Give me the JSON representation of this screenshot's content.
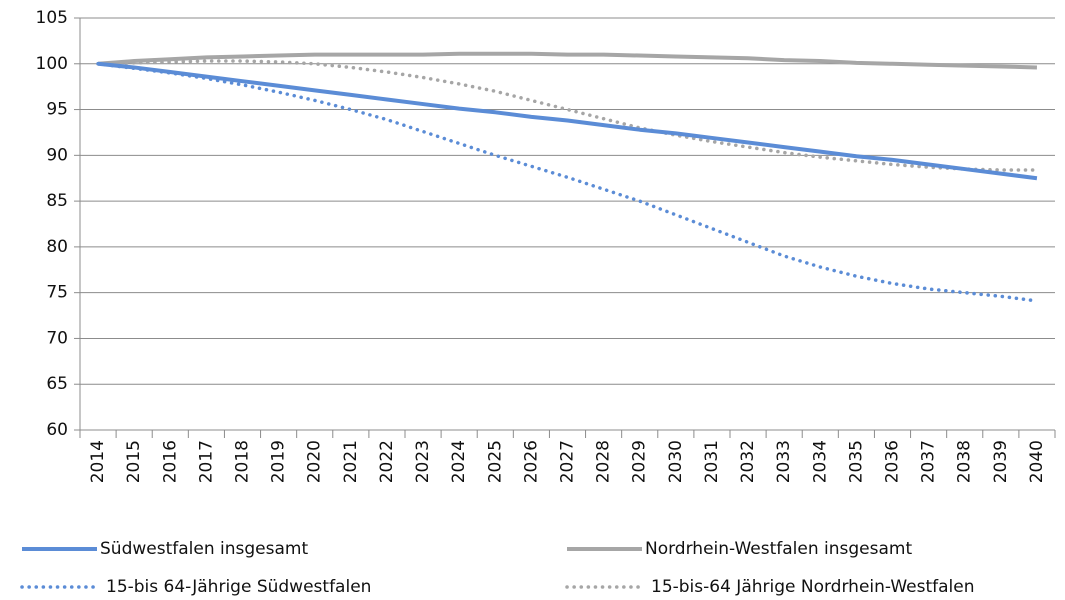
{
  "chart_data": {
    "type": "line",
    "categories": [
      "2014",
      "2015",
      "2016",
      "2017",
      "2018",
      "2019",
      "2020",
      "2021",
      "2022",
      "2023",
      "2024",
      "2025",
      "2026",
      "2027",
      "2028",
      "2029",
      "2030",
      "2031",
      "2032",
      "2033",
      "2034",
      "2035",
      "2036",
      "2037",
      "2038",
      "2039",
      "2040"
    ],
    "series": [
      {
        "name": "Südwestfalen insgesamt",
        "color": "#5b8cd6",
        "style": "solid",
        "values": [
          100,
          99.6,
          99.1,
          98.6,
          98.1,
          97.6,
          97.1,
          96.6,
          96.1,
          95.6,
          95.1,
          94.7,
          94.2,
          93.8,
          93.3,
          92.8,
          92.4,
          91.9,
          91.4,
          90.9,
          90.4,
          89.9,
          89.5,
          89.0,
          88.5,
          88.0,
          87.5
        ]
      },
      {
        "name": "Nordrhein-Westfalen insgesamt",
        "color": "#a6a6a6",
        "style": "solid",
        "values": [
          100,
          100.3,
          100.5,
          100.7,
          100.8,
          100.9,
          101.0,
          101.0,
          101.0,
          101.0,
          101.1,
          101.1,
          101.1,
          101.0,
          101.0,
          100.9,
          100.8,
          100.7,
          100.6,
          100.4,
          100.3,
          100.1,
          100.0,
          99.9,
          99.8,
          99.7,
          99.6
        ]
      },
      {
        "name": "15-bis 64-Jährige Südwestfalen",
        "color": "#5b8cd6",
        "style": "dotted",
        "values": [
          100,
          99.5,
          99.0,
          98.4,
          97.7,
          96.9,
          96.0,
          95.0,
          93.9,
          92.6,
          91.3,
          90.0,
          88.8,
          87.6,
          86.3,
          85.0,
          83.5,
          82.0,
          80.5,
          79.0,
          77.8,
          76.8,
          76.0,
          75.4,
          75.0,
          74.6,
          74.1
        ]
      },
      {
        "name": "15-bis-64 Jährige Nordrhein-Westfalen",
        "color": "#a6a6a6",
        "style": "dotted",
        "values": [
          100,
          100.1,
          100.2,
          100.3,
          100.3,
          100.2,
          100.0,
          99.6,
          99.1,
          98.5,
          97.8,
          97.0,
          96.0,
          95.0,
          94.0,
          93.0,
          92.2,
          91.5,
          90.9,
          90.3,
          89.8,
          89.4,
          89.0,
          88.7,
          88.5,
          88.4,
          88.4
        ]
      }
    ],
    "ylim": [
      60,
      105
    ],
    "yticks": [
      60,
      65,
      70,
      75,
      80,
      85,
      90,
      95,
      100,
      105
    ],
    "grid": true
  }
}
